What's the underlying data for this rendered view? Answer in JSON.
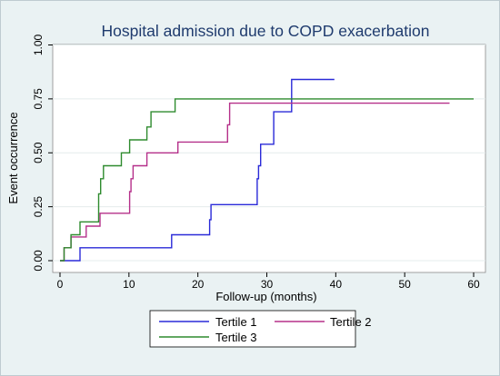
{
  "chart_data": {
    "type": "line",
    "title": "Hospital admission due to COPD exacerbation",
    "xlabel": "Follow-up (months)",
    "ylabel": "Event occurrence",
    "xlim": [
      0,
      60
    ],
    "ylim": [
      0,
      1
    ],
    "xticks": [
      0,
      10,
      20,
      30,
      40,
      50,
      60
    ],
    "yticks": [
      0,
      0.25,
      0.5,
      0.75,
      1
    ],
    "xtick_labels": [
      "0",
      "10",
      "20",
      "30",
      "40",
      "50",
      "60"
    ],
    "ytick_labels": [
      "0.00",
      "0.25",
      "0.50",
      "0.75",
      "1.00"
    ],
    "grid": "horizontal",
    "legend_position": "bottom",
    "series": [
      {
        "name": "Tertile 1",
        "color": "#2a2ad8",
        "step": true,
        "x": [
          0,
          2.9,
          2.9,
          16.2,
          16.2,
          21.7,
          21.7,
          21.9,
          21.9,
          28.6,
          28.6,
          28.8,
          28.8,
          29.1,
          29.1,
          31.0,
          31.0,
          33.6,
          33.6,
          39.8
        ],
        "y": [
          0,
          0,
          0.06,
          0.06,
          0.12,
          0.12,
          0.19,
          0.19,
          0.26,
          0.26,
          0.38,
          0.38,
          0.44,
          0.44,
          0.54,
          0.54,
          0.69,
          0.69,
          0.84,
          0.84
        ]
      },
      {
        "name": "Tertile 2",
        "color": "#b5308a",
        "step": true,
        "x": [
          0,
          0.6,
          0.6,
          1.6,
          1.6,
          2.5,
          2.5,
          3.8,
          3.8,
          5.8,
          5.8,
          10.1,
          10.1,
          10.3,
          10.3,
          10.6,
          10.6,
          11.0,
          11.0,
          12.6,
          12.6,
          17.1,
          17.1,
          24.3,
          24.3,
          24.6,
          24.6,
          56.5
        ],
        "y": [
          0,
          0,
          0.06,
          0.06,
          0.11,
          0.11,
          0.11,
          0.11,
          0.16,
          0.16,
          0.22,
          0.22,
          0.32,
          0.32,
          0.38,
          0.38,
          0.44,
          0.44,
          0.44,
          0.44,
          0.5,
          0.5,
          0.55,
          0.55,
          0.63,
          0.63,
          0.73,
          0.73
        ]
      },
      {
        "name": "Tertile 3",
        "color": "#2e8b2e",
        "step": true,
        "x": [
          0,
          0.6,
          0.6,
          1.6,
          1.6,
          2.9,
          2.9,
          5.6,
          5.6,
          5.9,
          5.9,
          6.3,
          6.3,
          8.9,
          8.9,
          10.1,
          10.1,
          12.6,
          12.6,
          13.2,
          13.2,
          16.7,
          16.7,
          60.0
        ],
        "y": [
          0,
          0,
          0.06,
          0.06,
          0.12,
          0.12,
          0.18,
          0.18,
          0.31,
          0.31,
          0.38,
          0.38,
          0.44,
          0.44,
          0.5,
          0.5,
          0.56,
          0.56,
          0.62,
          0.62,
          0.69,
          0.69,
          0.75,
          0.75
        ]
      }
    ]
  }
}
